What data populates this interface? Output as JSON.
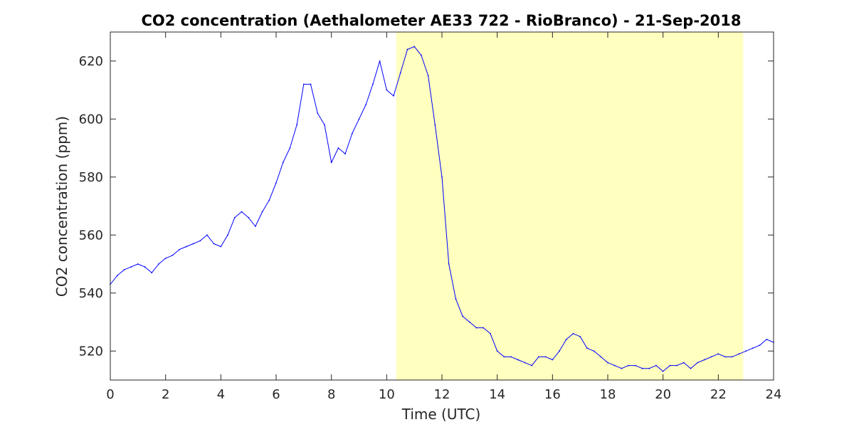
{
  "chart_data": {
    "type": "line",
    "title": "CO2 concentration (Aethalometer AE33 722 - RioBranco) - 21-Sep-2018",
    "xlabel": "Time (UTC)",
    "ylabel": "CO2 concentration (ppm)",
    "xlim": [
      0,
      24
    ],
    "ylim": [
      510,
      630
    ],
    "x_ticks": [
      0,
      2,
      4,
      6,
      8,
      10,
      12,
      14,
      16,
      18,
      20,
      22,
      24
    ],
    "y_ticks": [
      520,
      540,
      560,
      580,
      600,
      620
    ],
    "grid": false,
    "shaded_region": {
      "x_start": 10.35,
      "x_end": 22.9,
      "color": "#ffffbf"
    },
    "series": [
      {
        "color": "#0000ff",
        "x": [
          0.0,
          0.25,
          0.5,
          0.75,
          1.0,
          1.25,
          1.5,
          1.75,
          2.0,
          2.25,
          2.5,
          2.75,
          3.0,
          3.25,
          3.5,
          3.75,
          4.0,
          4.25,
          4.5,
          4.75,
          5.0,
          5.25,
          5.5,
          5.75,
          6.0,
          6.25,
          6.5,
          6.75,
          7.0,
          7.25,
          7.5,
          7.75,
          8.0,
          8.25,
          8.5,
          8.75,
          9.0,
          9.25,
          9.5,
          9.75,
          10.0,
          10.25,
          10.5,
          10.75,
          11.0,
          11.25,
          11.5,
          11.75,
          12.0,
          12.25,
          12.5,
          12.75,
          13.0,
          13.25,
          13.5,
          13.75,
          14.0,
          14.25,
          14.5,
          14.75,
          15.0,
          15.25,
          15.5,
          15.75,
          16.0,
          16.25,
          16.5,
          16.75,
          17.0,
          17.25,
          17.5,
          17.75,
          18.0,
          18.25,
          18.5,
          18.75,
          19.0,
          19.25,
          19.5,
          19.75,
          20.0,
          20.25,
          20.5,
          20.75,
          21.0,
          21.25,
          21.5,
          21.75,
          22.0,
          22.25,
          22.5,
          22.75,
          23.0,
          23.25,
          23.5,
          23.75,
          24.0
        ],
        "y": [
          543,
          546,
          548,
          549,
          550,
          549,
          547,
          550,
          552,
          553,
          555,
          556,
          557,
          558,
          560,
          557,
          556,
          560,
          566,
          568,
          566,
          563,
          568,
          572,
          578,
          585,
          590,
          598,
          612,
          612,
          602,
          598,
          585,
          590,
          588,
          595,
          600,
          605,
          612,
          620,
          610,
          608,
          616,
          624,
          625,
          622,
          615,
          598,
          580,
          550,
          538,
          532,
          530,
          528,
          528,
          526,
          520,
          518,
          518,
          517,
          516,
          515,
          518,
          518,
          517,
          520,
          524,
          526,
          525,
          521,
          520,
          518,
          516,
          515,
          514,
          515,
          515,
          514,
          514,
          515,
          513,
          515,
          515,
          516,
          514,
          516,
          517,
          518,
          519,
          518,
          518,
          519,
          520,
          521,
          522,
          524,
          523
        ]
      }
    ]
  }
}
